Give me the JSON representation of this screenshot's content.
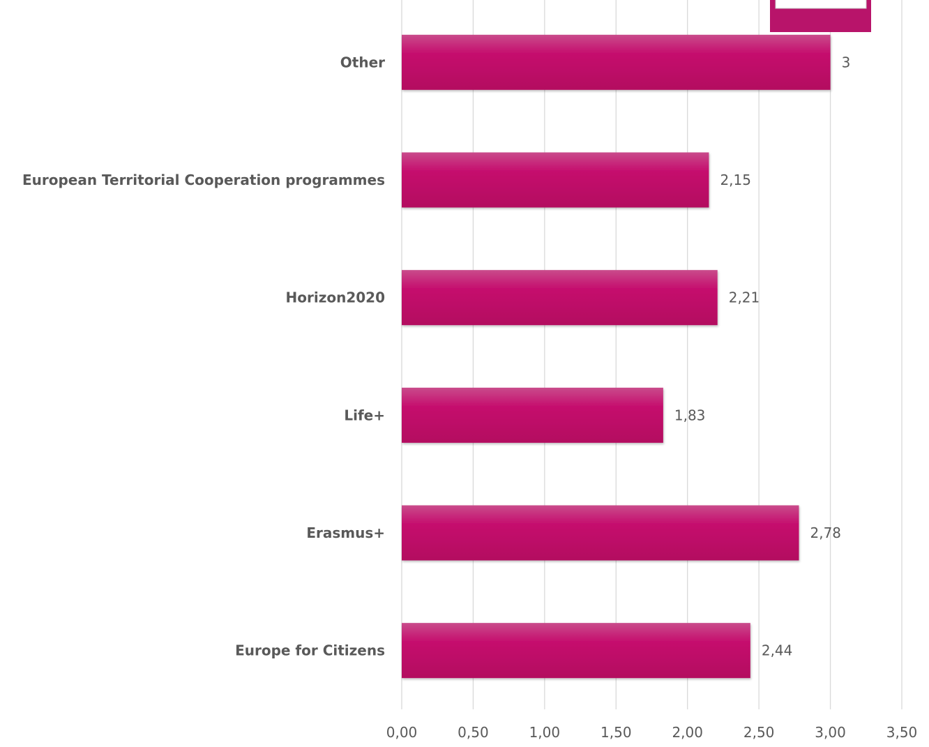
{
  "chart_data": {
    "type": "bar",
    "orientation": "horizontal",
    "categories": [
      "Europe for Citizens",
      "Erasmus+",
      "Life+",
      "Horizon2020",
      "European Territorial Cooperation programmes",
      "Other"
    ],
    "values": [
      2.44,
      2.78,
      1.83,
      2.21,
      2.15,
      3
    ],
    "data_labels": [
      "2,44",
      "2,78",
      "1,83",
      "2,21",
      "2,15",
      "3"
    ],
    "xlim": [
      0,
      3.5
    ],
    "xticks": [
      0,
      0.5,
      1,
      1.5,
      2,
      2.5,
      3,
      3.5
    ],
    "xtick_labels": [
      "0,00",
      "0,50",
      "1,00",
      "1,50",
      "2,00",
      "2,50",
      "3,00",
      "3,50"
    ],
    "title": "",
    "xlabel": "",
    "ylabel": "",
    "grid": true,
    "bar_color": "#c2185b",
    "legend_swatch_color": "#b8146a"
  }
}
